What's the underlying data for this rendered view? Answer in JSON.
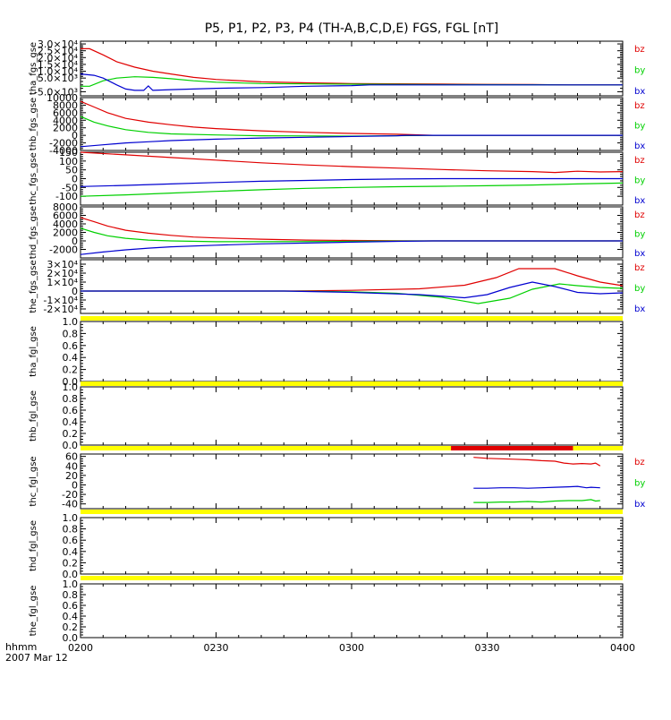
{
  "header": {
    "title": "P5, P1, P2, P3, P4 (TH-A,B,C,D,E) FGS, FGL [nT]",
    "time_label": "hhmm",
    "date_label": "2007 Mar 12"
  },
  "colors": {
    "bz": "#e00000",
    "by": "#00d000",
    "bx": "#0000d0",
    "flag": "#ffff00",
    "flag_red": "#e00000"
  },
  "chart_data": {
    "type": "line",
    "x_ticks": [
      "0200",
      "0230",
      "0300",
      "0330",
      "0400"
    ],
    "x_range_minutes": [
      0,
      120
    ],
    "legend_labels": [
      "bz",
      "by",
      "bx"
    ],
    "panels": [
      {
        "ylabel": "tha_fgs_gse",
        "ylim": [
          -8000,
          32000
        ],
        "yticks": [
          -5000,
          5000,
          10000,
          15000,
          20000,
          25000,
          30000
        ],
        "ytick_labels": [
          "-5.0×10³",
          "5.0×10³",
          "1.0×10⁴",
          "1.5×10⁴",
          "2.0×10⁴",
          "2.5×10⁴",
          "3.0×10⁴"
        ],
        "series": [
          {
            "name": "bz",
            "x": [
              0,
              2,
              5,
              8,
              12,
              16,
              20,
              25,
              30,
              40,
              50,
              60,
              70,
              80,
              90,
              100,
              108,
              120
            ],
            "y": [
              26500,
              26500,
              22000,
              17000,
              13000,
              10000,
              8000,
              5500,
              4000,
              2200,
              1500,
              1000,
              800,
              600,
              400,
              300,
              0,
              0
            ]
          },
          {
            "name": "by",
            "x": [
              0,
              2,
              5,
              8,
              12,
              16,
              20,
              25,
              30,
              40,
              60,
              80,
              100,
              108,
              120
            ],
            "y": [
              -1000,
              -1000,
              3000,
              5000,
              6000,
              5500,
              4500,
              3000,
              2000,
              1000,
              500,
              200,
              100,
              0,
              0
            ]
          },
          {
            "name": "bx",
            "x": [
              0,
              3,
              5,
              8,
              10,
              12,
              14,
              15,
              16,
              20,
              25,
              30,
              40,
              50,
              60,
              64,
              120
            ],
            "y": [
              8000,
              7000,
              5000,
              0,
              -3000,
              -4000,
              -4000,
              -800,
              -4000,
              -3500,
              -3000,
              -2500,
              -2000,
              -1000,
              -500,
              0,
              0
            ]
          }
        ]
      },
      {
        "ylabel": "thb_fgs_gse",
        "ylim": [
          -4000,
          10000
        ],
        "yticks": [
          -4000,
          -2000,
          0,
          2000,
          4000,
          6000,
          8000,
          10000
        ],
        "ytick_labels": [
          "-4000",
          "-2000",
          "0",
          "2000",
          "4000",
          "6000",
          "8000",
          "10000"
        ],
        "series": [
          {
            "name": "bz",
            "x": [
              0,
              3,
              6,
              10,
              15,
              20,
              25,
              30,
              40,
              50,
              60,
              70,
              78,
              120
            ],
            "y": [
              9000,
              7500,
              6000,
              4500,
              3500,
              2800,
              2200,
              1800,
              1200,
              800,
              500,
              300,
              0,
              0
            ]
          },
          {
            "name": "by",
            "x": [
              0,
              3,
              6,
              10,
              15,
              20,
              30,
              40,
              60,
              78,
              120
            ],
            "y": [
              5000,
              3500,
              2500,
              1500,
              800,
              400,
              100,
              -100,
              -200,
              0,
              0
            ]
          },
          {
            "name": "bx",
            "x": [
              0,
              5,
              10,
              15,
              20,
              30,
              40,
              50,
              60,
              70,
              72,
              120
            ],
            "y": [
              -3000,
              -2500,
              -2000,
              -1700,
              -1400,
              -1000,
              -700,
              -500,
              -300,
              -100,
              0,
              0
            ]
          }
        ]
      },
      {
        "ylabel": "thc_fgs_gse",
        "ylim": [
          -150,
          150
        ],
        "yticks": [
          -100,
          -50,
          0,
          50,
          100,
          150
        ],
        "ytick_labels": [
          "-100",
          "-50",
          "0",
          "50",
          "100",
          "150"
        ],
        "series": [
          {
            "name": "bz",
            "x": [
              0,
              10,
              20,
              30,
              40,
              50,
              60,
              70,
              80,
              90,
              100,
              105,
              110,
              115,
              120
            ],
            "y": [
              150,
              135,
              120,
              105,
              90,
              78,
              68,
              60,
              52,
              45,
              40,
              35,
              42,
              38,
              40
            ]
          },
          {
            "name": "by",
            "x": [
              0,
              10,
              20,
              30,
              40,
              50,
              60,
              70,
              80,
              90,
              100,
              110,
              120
            ],
            "y": [
              -100,
              -92,
              -82,
              -72,
              -63,
              -55,
              -50,
              -46,
              -43,
              -40,
              -36,
              -30,
              -25
            ]
          },
          {
            "name": "bx",
            "x": [
              0,
              10,
              20,
              30,
              40,
              50,
              60,
              70,
              80,
              90,
              100,
              110,
              120
            ],
            "y": [
              -45,
              -38,
              -30,
              -22,
              -15,
              -10,
              -5,
              -2,
              0,
              0,
              0,
              0,
              0
            ]
          }
        ]
      },
      {
        "ylabel": "thd_fgs_gse",
        "ylim": [
          -4000,
          8000
        ],
        "yticks": [
          -2000,
          0,
          2000,
          4000,
          6000,
          8000
        ],
        "ytick_labels": [
          "-2000",
          "0",
          "2000",
          "4000",
          "6000",
          "8000"
        ],
        "series": [
          {
            "name": "bz",
            "x": [
              0,
              3,
              6,
              10,
              15,
              20,
              25,
              30,
              40,
              50,
              60,
              75,
              120
            ],
            "y": [
              5500,
              4500,
              3500,
              2500,
              1800,
              1300,
              900,
              700,
              400,
              200,
              100,
              0,
              0
            ]
          },
          {
            "name": "by",
            "x": [
              0,
              3,
              6,
              10,
              15,
              20,
              30,
              40,
              60,
              75,
              120
            ],
            "y": [
              3000,
              2000,
              1200,
              600,
              200,
              0,
              -200,
              -200,
              -100,
              0,
              0
            ]
          },
          {
            "name": "bx",
            "x": [
              0,
              5,
              10,
              15,
              20,
              30,
              40,
              50,
              60,
              70,
              78,
              120
            ],
            "y": [
              -3200,
              -2600,
              -2100,
              -1700,
              -1400,
              -1000,
              -700,
              -500,
              -300,
              -100,
              0,
              0
            ]
          }
        ]
      },
      {
        "ylabel": "the_fgs_gse",
        "ylim": [
          -25000,
          35000
        ],
        "yticks": [
          -20000,
          -10000,
          0,
          10000,
          20000,
          30000
        ],
        "ytick_labels": [
          "-2×10⁴",
          "-1×10⁴",
          "0",
          "1×10⁴",
          "2×10⁴",
          "3×10⁴"
        ],
        "series": [
          {
            "name": "bz",
            "x": [
              0,
              45,
              60,
              75,
              85,
              92,
              97,
              105,
              110,
              115,
              120
            ],
            "y": [
              0,
              0,
              800,
              2500,
              6500,
              15000,
              25000,
              25000,
              17000,
              10000,
              6000
            ]
          },
          {
            "name": "by",
            "x": [
              0,
              45,
              60,
              70,
              80,
              88,
              95,
              100,
              106,
              110,
              115,
              120
            ],
            "y": [
              0,
              0,
              -800,
              -2500,
              -7000,
              -14000,
              -8000,
              2000,
              8000,
              6000,
              4000,
              3000
            ]
          },
          {
            "name": "bx",
            "x": [
              0,
              45,
              60,
              75,
              85,
              90,
              95,
              100,
              105,
              110,
              115,
              120
            ],
            "y": [
              0,
              0,
              -1500,
              -4000,
              -7500,
              -4000,
              4000,
              10000,
              5000,
              -1500,
              -3000,
              -2000
            ]
          }
        ]
      },
      {
        "ylabel": "tha_fgl_gse",
        "ylim": [
          0,
          1
        ],
        "yticks": [
          0,
          0.2,
          0.4,
          0.6,
          0.8,
          1.0
        ],
        "ytick_labels": [
          "0.0",
          "0.2",
          "0.4",
          "0.6",
          "0.8",
          "1.0"
        ],
        "series": []
      },
      {
        "ylabel": "thb_fgl_gse",
        "ylim": [
          0,
          1
        ],
        "yticks": [
          0,
          0.2,
          0.4,
          0.6,
          0.8,
          1.0
        ],
        "ytick_labels": [
          "0.0",
          "0.2",
          "0.4",
          "0.6",
          "0.8",
          "1.0"
        ],
        "series": []
      },
      {
        "ylabel": "thc_fgl_gse",
        "ylim": [
          -50,
          65
        ],
        "yticks": [
          -40,
          -20,
          0,
          20,
          40,
          60
        ],
        "ytick_labels": [
          "-40",
          "-20",
          "0",
          "20",
          "40",
          "60"
        ],
        "series": [
          {
            "name": "bz",
            "x": [
              87,
              90,
              93,
              96,
              99,
              102,
              105,
              107,
              109,
              111,
              113,
              114,
              115
            ],
            "y": [
              58,
              56,
              55,
              54,
              53,
              51,
              50,
              46,
              44,
              45,
              44,
              46,
              40
            ]
          },
          {
            "name": "by",
            "x": [
              87,
              90,
              93,
              96,
              99,
              102,
              105,
              108,
              111,
              113,
              114,
              115
            ],
            "y": [
              -37,
              -37,
              -36,
              -36,
              -35,
              -36,
              -34,
              -33,
              -33,
              -31,
              -34,
              -33
            ]
          },
          {
            "name": "bx",
            "x": [
              87,
              90,
              93,
              96,
              99,
              102,
              105,
              108,
              110,
              112,
              113,
              115
            ],
            "y": [
              -7,
              -7,
              -6,
              -6,
              -7,
              -6,
              -5,
              -4,
              -3,
              -6,
              -5,
              -6
            ]
          }
        ]
      },
      {
        "ylabel": "thd_fgl_gse",
        "ylim": [
          0,
          1
        ],
        "yticks": [
          0,
          0.2,
          0.4,
          0.6,
          0.8,
          1.0
        ],
        "ytick_labels": [
          "0.0",
          "0.2",
          "0.4",
          "0.6",
          "0.8",
          "1.0"
        ],
        "series": []
      },
      {
        "ylabel": "the_fgl_gse",
        "ylim": [
          0,
          1
        ],
        "yticks": [
          0,
          0.2,
          0.4,
          0.6,
          0.8,
          1.0
        ],
        "ytick_labels": [
          "0.0",
          "0.2",
          "0.4",
          "0.6",
          "0.8",
          "1.0"
        ],
        "series": []
      }
    ],
    "flag_bars": [
      {
        "after_panel": 5,
        "segments": [
          {
            "color": "flag",
            "x0": 0,
            "x1": 120
          }
        ]
      },
      {
        "after_panel": 6,
        "segments": [
          {
            "color": "flag",
            "x0": 0,
            "x1": 120
          }
        ]
      },
      {
        "after_panel": 7,
        "segments": [
          {
            "color": "flag",
            "x0": 0,
            "x1": 120
          },
          {
            "color": "flag_red",
            "x0": 82,
            "x1": 109
          }
        ]
      },
      {
        "after_panel": 8,
        "segments": [
          {
            "color": "flag",
            "x0": 0,
            "x1": 120
          }
        ]
      },
      {
        "after_panel": 9,
        "segments": [
          {
            "color": "flag",
            "x0": 0,
            "x1": 120
          }
        ]
      }
    ]
  }
}
